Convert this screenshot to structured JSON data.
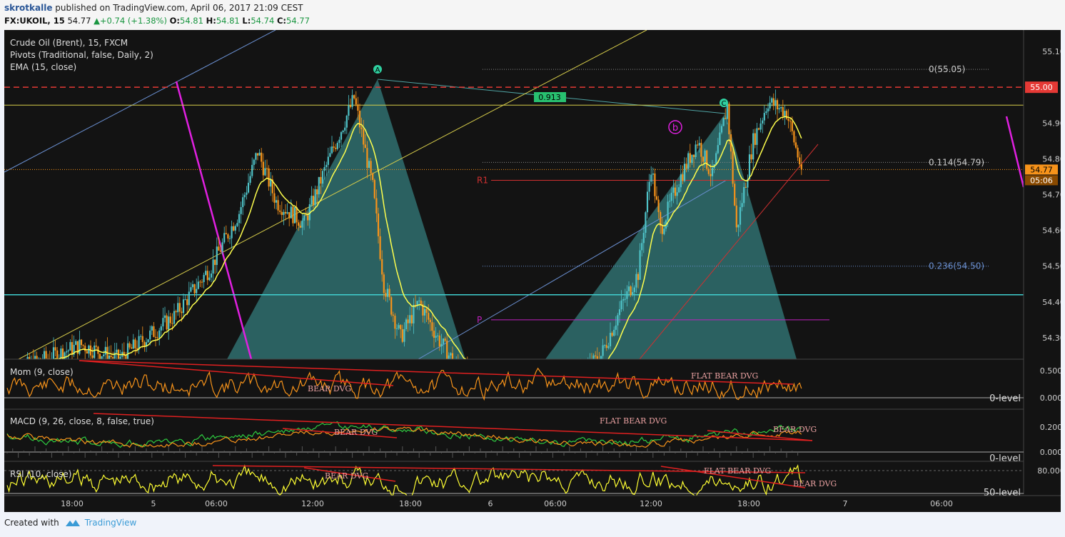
{
  "header": {
    "author": "skrotkalle",
    "published_text": "published on TradingView.com, April 06, 2017 21:09 CEST",
    "symbol_line": "FX:UKOIL, 15",
    "price": "54.77",
    "change": "+0.74 (+1.38%)",
    "o_label": "O:",
    "o": "54.81",
    "h_label": "H:",
    "h": "54.81",
    "l_label": "L:",
    "l": "54.74",
    "c_label": "C:",
    "c": "54.77"
  },
  "legend": {
    "main": "Crude Oil (Brent), 15, FXCM",
    "pivots": "Pivots (Traditional, false, Daily, 2)",
    "ema": "EMA (15, close)",
    "mom": "Mom (9, close)",
    "macd": "MACD (9, 26, close, 8, false, true)",
    "rsi": "RSI (10, close)"
  },
  "footer": {
    "created_with": "Created with",
    "brand": "TradingView"
  },
  "colors": {
    "background": "#131313",
    "candle_up": "#4fc3c8",
    "candle_down": "#f7931a",
    "ema": "#ffff4d",
    "resistance": "#e53935",
    "pattern_fill": "#3fa3a3",
    "pivot_p": "#c020c0",
    "momentum": "#f7931a",
    "macd": "#2ecc40",
    "signal": "#f7931a",
    "rsi": "#ffff33"
  },
  "chart_data": {
    "type": "candlestick",
    "symbol": "FX:UKOIL",
    "interval": "15",
    "ylim": [
      54.24,
      55.16
    ],
    "y_ticks": [
      "55.10",
      "54.90",
      "54.80",
      "54.70",
      "54.60",
      "54.50",
      "54.40",
      "54.30"
    ],
    "x_ticks": [
      "18:00",
      "5",
      "06:00",
      "12:00",
      "18:00",
      "6",
      "06:00",
      "12:00",
      "18:00",
      "7",
      "06:00"
    ],
    "price_badges": {
      "resistance": "55.00",
      "last": "54.77",
      "countdown": "05:06"
    },
    "fib_levels": [
      {
        "label": "0(55.05)",
        "value": 55.05
      },
      {
        "label": "0.114(54.79)",
        "value": 54.79
      },
      {
        "label": "0.236(54.50)",
        "value": 54.5
      }
    ],
    "pivot_levels": [
      {
        "label": "R1",
        "value": 54.74
      },
      {
        "label": "P",
        "value": 54.35
      }
    ],
    "horizontal_levels": [
      55.0,
      54.95,
      54.42
    ],
    "pattern_labels": [
      "A",
      "C",
      "b"
    ],
    "pattern_ratio": "0.913",
    "waypoints": [
      [
        0,
        54.2
      ],
      [
        40,
        54.28
      ],
      [
        60,
        54.24
      ],
      [
        90,
        54.36
      ],
      [
        110,
        54.5
      ],
      [
        125,
        54.65
      ],
      [
        135,
        54.82
      ],
      [
        145,
        54.68
      ],
      [
        160,
        54.62
      ],
      [
        175,
        54.82
      ],
      [
        187,
        54.97
      ],
      [
        197,
        54.72
      ],
      [
        203,
        54.45
      ],
      [
        212,
        54.3
      ],
      [
        222,
        54.4
      ],
      [
        232,
        54.3
      ],
      [
        242,
        54.22
      ],
      [
        262,
        54.15
      ],
      [
        290,
        54.1
      ],
      [
        320,
        54.25
      ],
      [
        332,
        54.4
      ],
      [
        340,
        54.48
      ],
      [
        347,
        54.78
      ],
      [
        352,
        54.6
      ],
      [
        362,
        54.74
      ],
      [
        372,
        54.85
      ],
      [
        380,
        54.75
      ],
      [
        388,
        54.95
      ],
      [
        393,
        54.6
      ],
      [
        402,
        54.85
      ],
      [
        410,
        54.96
      ],
      [
        420,
        54.93
      ],
      [
        428,
        54.77
      ]
    ],
    "indicators": {
      "mom": {
        "ticks": [
          "0.5000",
          "0.0000"
        ],
        "zero_label": "0-level",
        "labels": [
          "BEAR DVG",
          "FLAT BEAR DVG"
        ]
      },
      "macd": {
        "ticks": [
          "0.2000",
          "0.0000"
        ],
        "zero_label": "0-level",
        "labels": [
          "BEAR DVG",
          "FLAT BEAR DVG",
          "BEAR DVG"
        ]
      },
      "rsi": {
        "ticks": [
          "80.0000"
        ],
        "level_label": "50-level",
        "labels": [
          "BEAR DVG",
          "FLAT BEAR DVG",
          "BEAR DVG"
        ]
      }
    }
  }
}
